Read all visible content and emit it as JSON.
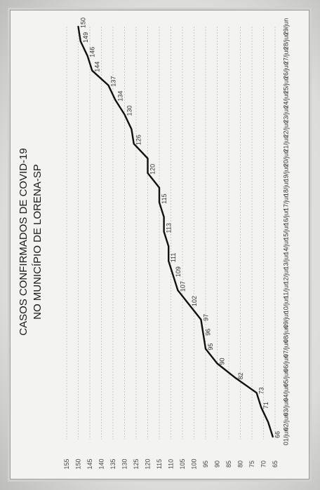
{
  "chart_data": {
    "type": "line",
    "title": "CASOS CONFIRMADOS DE COVID-19",
    "subtitle": "NO MUNICÍPIO DE LORENA-SP",
    "x": [
      "01/jun",
      "02/jun",
      "03/jun",
      "04/jun",
      "05/jun",
      "06/jun",
      "07/jun",
      "08/jun",
      "09/jun",
      "10/jun",
      "11/jun",
      "12/jun",
      "13/jun",
      "14/jun",
      "15/jun",
      "16/jun",
      "17/jun",
      "18/jun",
      "19/jun",
      "20/jun",
      "21/jun",
      "22/jun",
      "23/jun",
      "24/jun",
      "25/jun",
      "26/jun",
      "27/jun",
      "28/jun",
      "29/jun"
    ],
    "series": [
      {
        "values": [
          66,
          68,
          71,
          73,
          82,
          90,
          95,
          96,
          97,
          102,
          107,
          109,
          111,
          111,
          113,
          113,
          115,
          115,
          120,
          120,
          126,
          127,
          130,
          134,
          137,
          144,
          146,
          149,
          150
        ]
      }
    ],
    "data_labels": [
      {
        "i": 0,
        "t": "66"
      },
      {
        "i": 2,
        "t": "71"
      },
      {
        "i": 3,
        "t": "73"
      },
      {
        "i": 4,
        "t": "82"
      },
      {
        "i": 5,
        "t": "90"
      },
      {
        "i": 6,
        "t": "95"
      },
      {
        "i": 7,
        "t": "96"
      },
      {
        "i": 8,
        "t": "97"
      },
      {
        "i": 9,
        "t": "102"
      },
      {
        "i": 10,
        "t": "107"
      },
      {
        "i": 11,
        "t": "109"
      },
      {
        "i": 12,
        "t": "111"
      },
      {
        "i": 14,
        "t": "113"
      },
      {
        "i": 16,
        "t": "115"
      },
      {
        "i": 18,
        "t": "120"
      },
      {
        "i": 20,
        "t": "126"
      },
      {
        "i": 22,
        "t": "130"
      },
      {
        "i": 23,
        "t": "134"
      },
      {
        "i": 24,
        "t": "137"
      },
      {
        "i": 25,
        "t": "144"
      },
      {
        "i": 26,
        "t": "146"
      },
      {
        "i": 27,
        "t": "149"
      },
      {
        "i": 28,
        "t": "150"
      }
    ],
    "y_ticks": [
      65,
      70,
      75,
      80,
      85,
      90,
      95,
      100,
      105,
      110,
      115,
      120,
      125,
      130,
      135,
      140,
      145,
      150,
      155
    ],
    "ylim": [
      65,
      155
    ],
    "grid": true,
    "orientation": "rotated 90° counter-clockwise",
    "line_color": "#111111",
    "grid_color": "#c9c9c9"
  }
}
